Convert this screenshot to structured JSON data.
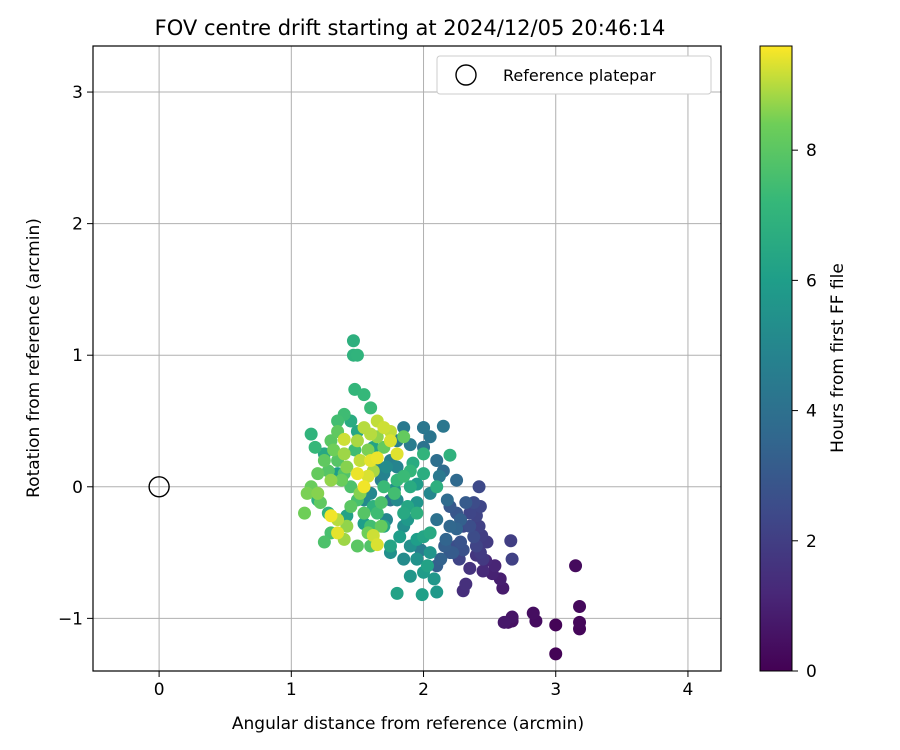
{
  "chart_data": {
    "type": "scatter",
    "title": "FOV centre drift starting at 2024/12/05 20:46:14",
    "xlabel": "Angular distance from reference (arcmin)",
    "ylabel": "Rotation from reference (arcmin)",
    "xlim": [
      -0.5,
      4.25
    ],
    "ylim": [
      -1.4,
      3.35
    ],
    "x_ticks": [
      0,
      1,
      2,
      3,
      4
    ],
    "y_ticks": [
      -1,
      0,
      1,
      2,
      3
    ],
    "grid": true,
    "legend_position": "top-right",
    "reference": {
      "name": "Reference platepar",
      "x": 0,
      "y": 0
    },
    "colorbar": {
      "label": "Hours from first FF file",
      "colormap": "viridis",
      "range": [
        0,
        9.6
      ],
      "ticks": [
        0,
        2,
        4,
        6,
        8
      ]
    },
    "points": [
      [
        3.0,
        -1.27,
        0.05
      ],
      [
        3.0,
        -1.05,
        0.1
      ],
      [
        3.18,
        -1.08,
        0.15
      ],
      [
        3.18,
        -1.03,
        0.2
      ],
      [
        3.18,
        -0.91,
        0.25
      ],
      [
        3.15,
        -0.6,
        0.3
      ],
      [
        2.85,
        -1.02,
        0.35
      ],
      [
        2.83,
        -0.96,
        0.4
      ],
      [
        2.67,
        -1.02,
        0.45
      ],
      [
        2.64,
        -1.03,
        0.5
      ],
      [
        2.67,
        -0.99,
        0.6
      ],
      [
        2.61,
        -1.03,
        0.7
      ],
      [
        2.6,
        -0.77,
        0.8
      ],
      [
        2.58,
        -0.7,
        0.9
      ],
      [
        2.52,
        -0.66,
        1.0
      ],
      [
        2.54,
        -0.6,
        1.1
      ],
      [
        2.47,
        -0.56,
        1.2
      ],
      [
        2.45,
        -0.64,
        1.3
      ],
      [
        2.3,
        -0.79,
        1.4
      ],
      [
        2.32,
        -0.74,
        1.5
      ],
      [
        2.35,
        -0.62,
        1.6
      ],
      [
        2.4,
        -0.52,
        1.7
      ],
      [
        2.45,
        -0.55,
        1.8
      ],
      [
        2.43,
        -0.5,
        1.9
      ],
      [
        2.44,
        -0.37,
        2.0
      ],
      [
        2.42,
        -0.3,
        2.1
      ],
      [
        2.4,
        -0.22,
        2.2
      ],
      [
        2.43,
        -0.15,
        2.3
      ],
      [
        2.42,
        -0.0,
        2.4
      ],
      [
        2.38,
        -0.12,
        2.5
      ],
      [
        2.35,
        -0.3,
        2.6
      ],
      [
        2.3,
        -0.48,
        2.7
      ],
      [
        2.28,
        -0.42,
        2.8
      ],
      [
        2.25,
        -0.2,
        2.9
      ],
      [
        2.2,
        -0.15,
        3.0
      ],
      [
        2.22,
        -0.5,
        3.1
      ],
      [
        2.16,
        -0.45,
        3.2
      ],
      [
        2.1,
        -0.6,
        3.3
      ],
      [
        2.66,
        -0.41,
        2.0
      ],
      [
        2.67,
        -0.55,
        2.1
      ],
      [
        2.27,
        -0.55,
        2.2
      ],
      [
        2.13,
        -0.55,
        3.4
      ],
      [
        2.17,
        -0.4,
        3.5
      ],
      [
        2.2,
        -0.3,
        3.6
      ],
      [
        2.25,
        0.05,
        3.7
      ],
      [
        2.15,
        0.12,
        3.8
      ],
      [
        2.1,
        0.2,
        3.9
      ],
      [
        2.0,
        0.45,
        4.0
      ],
      [
        2.0,
        0.3,
        4.1
      ],
      [
        2.15,
        0.46,
        4.3
      ],
      [
        2.05,
        0.38,
        4.2
      ],
      [
        1.85,
        0.45,
        4.4
      ],
      [
        1.9,
        0.32,
        4.5
      ],
      [
        1.8,
        0.35,
        4.6
      ],
      [
        1.75,
        0.2,
        4.7
      ],
      [
        1.7,
        0.1,
        4.8
      ],
      [
        1.65,
        0.15,
        4.9
      ],
      [
        1.6,
        -0.05,
        5.0
      ],
      [
        1.55,
        -0.1,
        5.1
      ],
      [
        1.8,
        -0.1,
        5.2
      ],
      [
        1.85,
        -0.3,
        5.3
      ],
      [
        1.9,
        -0.45,
        5.4
      ],
      [
        1.95,
        -0.55,
        5.5
      ],
      [
        2.05,
        -0.5,
        5.6
      ],
      [
        2.08,
        -0.7,
        5.7
      ],
      [
        2.1,
        -0.8,
        5.8
      ],
      [
        2.0,
        -0.65,
        5.9
      ],
      [
        1.95,
        -0.4,
        6.0
      ],
      [
        1.99,
        -0.82,
        6.1
      ],
      [
        1.8,
        -0.81,
        6.2
      ],
      [
        1.75,
        -0.45,
        6.3
      ],
      [
        1.7,
        -0.3,
        6.4
      ],
      [
        1.85,
        -0.2,
        6.5
      ],
      [
        1.9,
        0.0,
        6.6
      ],
      [
        2.0,
        0.1,
        6.7
      ],
      [
        2.1,
        0.0,
        6.8
      ],
      [
        2.2,
        0.24,
        6.9
      ],
      [
        2.0,
        0.25,
        7.0
      ],
      [
        1.9,
        0.12,
        7.1
      ],
      [
        1.8,
        0.05,
        7.2
      ],
      [
        1.7,
        0.0,
        7.3
      ],
      [
        1.65,
        -0.2,
        7.4
      ],
      [
        1.6,
        -0.3,
        7.5
      ],
      [
        1.5,
        -0.1,
        7.6
      ],
      [
        1.45,
        0.0,
        7.7
      ],
      [
        1.4,
        0.1,
        7.8
      ],
      [
        1.35,
        0.2,
        7.9
      ],
      [
        1.3,
        0.35,
        8.0
      ],
      [
        1.25,
        0.2,
        8.1
      ],
      [
        1.2,
        0.1,
        8.2
      ],
      [
        1.15,
        0.0,
        8.3
      ],
      [
        1.1,
        -0.2,
        8.4
      ],
      [
        1.12,
        -0.05,
        8.5
      ],
      [
        1.2,
        -0.05,
        8.6
      ],
      [
        1.3,
        0.05,
        8.7
      ],
      [
        1.4,
        0.25,
        8.8
      ],
      [
        1.5,
        0.35,
        8.9
      ],
      [
        1.6,
        0.4,
        9.0
      ],
      [
        1.65,
        0.5,
        9.1
      ],
      [
        1.7,
        0.45,
        9.2
      ],
      [
        1.75,
        0.35,
        9.3
      ],
      [
        1.8,
        0.25,
        9.35
      ],
      [
        1.6,
        0.2,
        9.4
      ],
      [
        1.5,
        0.1,
        9.45
      ],
      [
        1.55,
        0.0,
        9.5
      ],
      [
        1.45,
        0.5,
        6.6
      ],
      [
        1.47,
        1.11,
        6.8
      ],
      [
        1.47,
        1.0,
        6.9
      ],
      [
        1.5,
        1.0,
        7.0
      ],
      [
        1.48,
        0.74,
        7.1
      ],
      [
        1.55,
        0.7,
        7.2
      ],
      [
        1.6,
        0.6,
        7.3
      ],
      [
        1.4,
        0.55,
        7.4
      ],
      [
        1.35,
        0.5,
        7.5
      ],
      [
        1.3,
        -0.35,
        7.6
      ],
      [
        1.25,
        -0.42,
        7.7
      ],
      [
        1.3,
        -0.22,
        9.5
      ],
      [
        1.35,
        -0.35,
        9.4
      ],
      [
        1.4,
        -0.4,
        8.8
      ],
      [
        1.5,
        -0.45,
        8.0
      ],
      [
        1.6,
        -0.45,
        7.8
      ],
      [
        1.62,
        -0.37,
        9.2
      ],
      [
        1.65,
        -0.44,
        9.3
      ],
      [
        1.75,
        -0.5,
        5.4
      ],
      [
        1.85,
        -0.55,
        5.2
      ],
      [
        1.95,
        -0.55,
        5.5
      ],
      [
        2.05,
        -0.35,
        6.5
      ],
      [
        2.0,
        -0.38,
        6.3
      ],
      [
        1.95,
        -0.2,
        6.8
      ],
      [
        1.98,
        -0.48,
        4.5
      ],
      [
        2.1,
        -0.25,
        4.0
      ],
      [
        2.2,
        -0.5,
        3.0
      ],
      [
        2.25,
        -0.45,
        2.6
      ],
      [
        2.3,
        -0.3,
        2.4
      ],
      [
        2.35,
        -0.2,
        2.3
      ],
      [
        1.75,
        -0.1,
        4.2
      ],
      [
        1.68,
        0.05,
        4.6
      ],
      [
        1.72,
        0.15,
        5.2
      ],
      [
        1.58,
        0.28,
        8.5
      ],
      [
        1.62,
        0.12,
        8.9
      ],
      [
        1.52,
        0.2,
        9.1
      ],
      [
        1.42,
        0.15,
        8.6
      ],
      [
        1.38,
        0.05,
        8.3
      ],
      [
        1.45,
        -0.15,
        8.0
      ],
      [
        1.55,
        -0.2,
        7.9
      ],
      [
        1.68,
        -0.12,
        7.7
      ],
      [
        1.78,
        -0.05,
        7.5
      ],
      [
        1.85,
        0.08,
        7.3
      ],
      [
        1.92,
        0.18,
        6.6
      ],
      [
        1.7,
        0.3,
        8.2
      ],
      [
        1.65,
        0.38,
        8.7
      ],
      [
        1.55,
        0.45,
        9.0
      ],
      [
        1.4,
        0.36,
        9.2
      ],
      [
        1.32,
        0.28,
        8.4
      ],
      [
        1.28,
        0.12,
        7.9
      ],
      [
        1.22,
        -0.12,
        8.1
      ],
      [
        1.18,
        0.3,
        7.2
      ],
      [
        1.15,
        0.4,
        7.0
      ],
      [
        1.35,
        -0.25,
        9.0
      ],
      [
        1.42,
        -0.3,
        8.7
      ],
      [
        1.58,
        -0.35,
        8.4
      ],
      [
        1.68,
        -0.3,
        8.2
      ],
      [
        1.82,
        -0.38,
        6.0
      ],
      [
        1.88,
        -0.25,
        5.8
      ],
      [
        1.95,
        -0.12,
        5.6
      ],
      [
        2.05,
        -0.05,
        5.0
      ],
      [
        2.12,
        0.08,
        4.4
      ],
      [
        2.18,
        -0.1,
        3.8
      ],
      [
        2.28,
        -0.25,
        3.3
      ],
      [
        2.32,
        -0.12,
        3.1
      ],
      [
        2.38,
        -0.38,
        2.5
      ],
      [
        2.4,
        -0.45,
        2.2
      ],
      [
        2.48,
        -0.42,
        1.9
      ],
      [
        2.25,
        -0.32,
        3.5
      ],
      [
        1.9,
        -0.68,
        5.7
      ],
      [
        2.03,
        -0.6,
        6.2
      ],
      [
        1.72,
        -0.25,
        5.0
      ],
      [
        1.62,
        -0.15,
        6.9
      ],
      [
        1.52,
        -0.05,
        8.6
      ],
      [
        1.35,
        0.42,
        8.1
      ],
      [
        1.48,
        0.28,
        7.4
      ],
      [
        1.58,
        0.08,
        9.3
      ],
      [
        1.65,
        0.22,
        9.45
      ],
      [
        1.75,
        0.42,
        9.1
      ],
      [
        1.85,
        0.38,
        8.2
      ],
      [
        1.88,
        -0.15,
        6.4
      ],
      [
        1.78,
        -0.02,
        5.4
      ],
      [
        1.8,
        0.15,
        4.9
      ],
      [
        1.95,
        0.02,
        5.9
      ],
      [
        1.35,
        0.1,
        6.0
      ],
      [
        1.25,
        0.25,
        6.5
      ],
      [
        1.2,
        -0.1,
        6.8
      ],
      [
        1.28,
        -0.2,
        7.0
      ],
      [
        1.42,
        -0.22,
        6.2
      ],
      [
        1.5,
        0.42,
        6.4
      ],
      [
        1.55,
        -0.28,
        6.0
      ],
      [
        2.0,
        0.45,
        4.3
      ],
      [
        1.62,
        0.3,
        6.2
      ]
    ]
  }
}
